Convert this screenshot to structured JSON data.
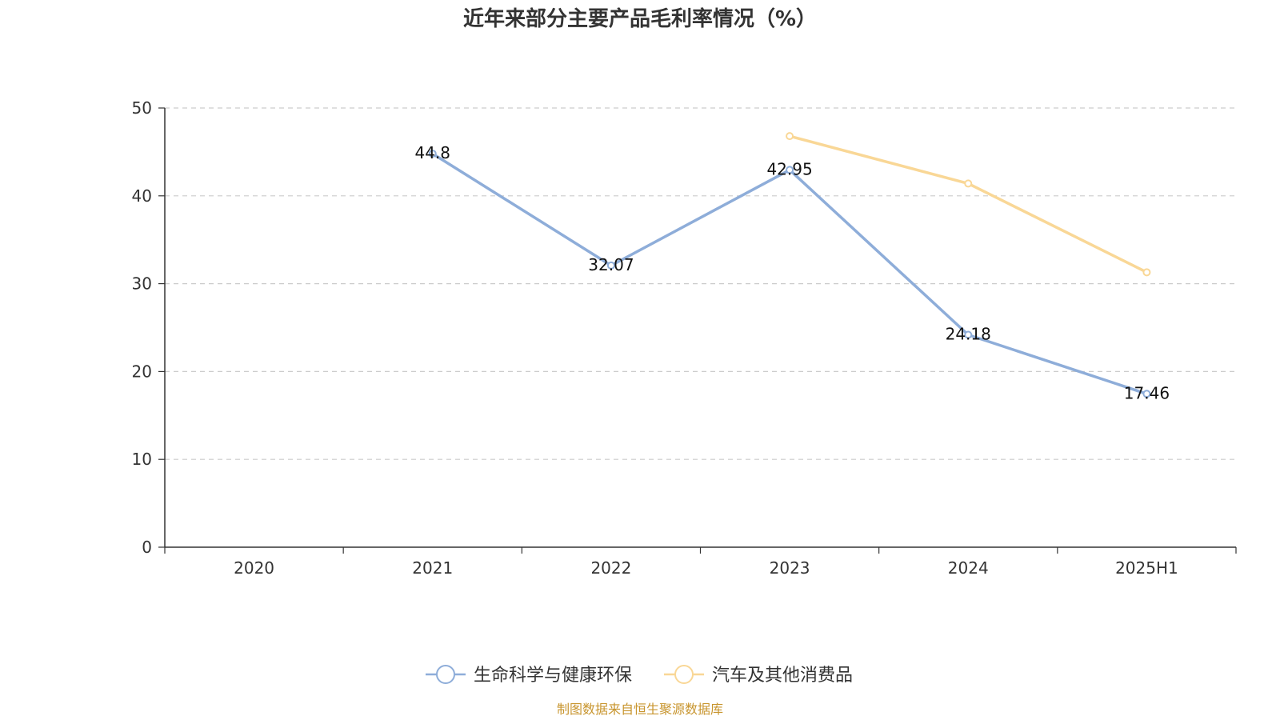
{
  "chart_data": {
    "type": "line",
    "title": "近年来部分主要产品毛利率情况（%）",
    "categories": [
      "2020",
      "2021",
      "2022",
      "2023",
      "2024",
      "2025H1"
    ],
    "ylim": [
      0,
      50
    ],
    "yticks": [
      0,
      10,
      20,
      30,
      40,
      50
    ],
    "grid": true,
    "legend_position": "bottom",
    "series": [
      {
        "name": "生命科学与健康环保",
        "color": "#8EADD9",
        "values": [
          null,
          44.8,
          32.07,
          42.95,
          24.18,
          17.46
        ],
        "labels": [
          "",
          "44.8",
          "32.07",
          "42.95",
          "24.18",
          "17.46"
        ],
        "show_labels": true
      },
      {
        "name": "汽车及其他消费品",
        "color": "#F9D796",
        "values": [
          null,
          null,
          null,
          46.8,
          41.4,
          31.3
        ],
        "labels": [
          "",
          "",
          "",
          "",
          "",
          ""
        ],
        "show_labels": false
      }
    ]
  },
  "source": {
    "text": "制图数据来自恒生聚源数据库",
    "color": "#C8952E"
  }
}
